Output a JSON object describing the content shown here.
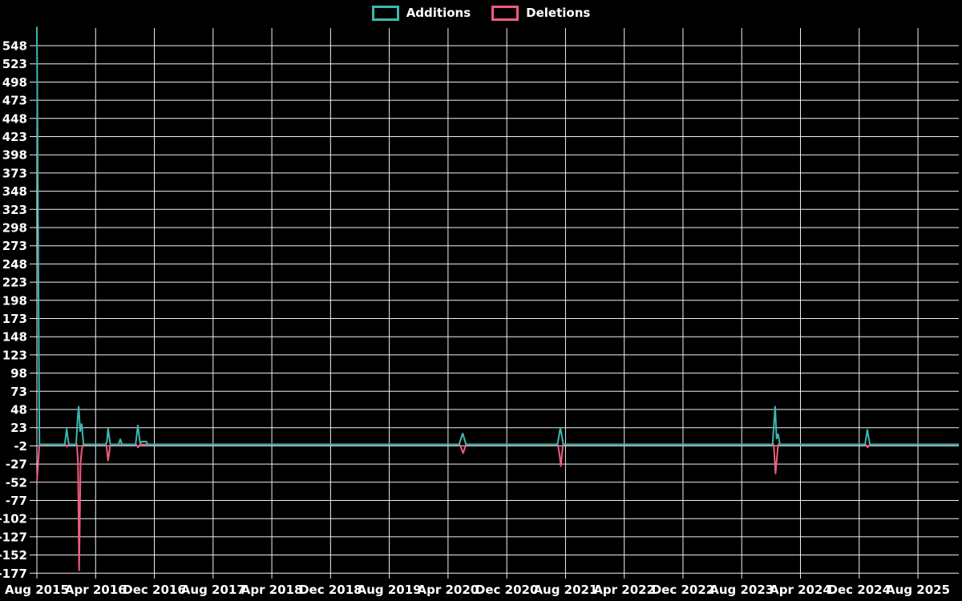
{
  "colors": {
    "background": "#000000",
    "grid": "#f2f2f2",
    "text": "#ffffff",
    "additions": "#3db8af",
    "deletions": "#f25c7f"
  },
  "legend": {
    "items": [
      {
        "label": "Additions",
        "color": "#3db8af"
      },
      {
        "label": "Deletions",
        "color": "#f25c7f"
      }
    ]
  },
  "chart_data": {
    "type": "line",
    "title": "",
    "legend_position": "top-center",
    "grid": true,
    "x_axis": {
      "tick_labels": [
        "Aug 2015",
        "Apr 2016",
        "Dec 2016",
        "Aug 2017",
        "Apr 2018",
        "Dec 2018",
        "Aug 2019",
        "Apr 2020",
        "Dec 2020",
        "Aug 2021",
        "Apr 2022",
        "Dec 2022",
        "Aug 2023",
        "Apr 2024",
        "Dec 2024",
        "Aug 2025"
      ],
      "months_between_ticks": 8
    },
    "y_axis": {
      "tick_labels": [
        "548",
        "523",
        "498",
        "473",
        "448",
        "423",
        "398",
        "373",
        "348",
        "323",
        "298",
        "273",
        "248",
        "223",
        "198",
        "173",
        "148",
        "123",
        "98",
        "73",
        "48",
        "23",
        "-2",
        "-27",
        "-52",
        "-77",
        "-102",
        "-127",
        "-152",
        "-177"
      ],
      "max_tick": 548,
      "min_tick": -177,
      "tick_step": 25
    },
    "series": [
      {
        "name": "Additions",
        "color": "#3db8af",
        "points_months_vs_value": [
          [
            0,
            573
          ],
          [
            0.35,
            0
          ],
          [
            3.8,
            0
          ],
          [
            4.05,
            21
          ],
          [
            4.35,
            0
          ],
          [
            5.35,
            0
          ],
          [
            5.55,
            35
          ],
          [
            5.7,
            52
          ],
          [
            5.9,
            18
          ],
          [
            6.1,
            28
          ],
          [
            6.35,
            0
          ],
          [
            9.35,
            0
          ],
          [
            9.55,
            4
          ],
          [
            9.7,
            22
          ],
          [
            10.0,
            0
          ],
          [
            11.1,
            0
          ],
          [
            11.35,
            7
          ],
          [
            11.6,
            0
          ],
          [
            13.45,
            0
          ],
          [
            13.75,
            26
          ],
          [
            14.05,
            2
          ],
          [
            14.3,
            4
          ],
          [
            14.9,
            4
          ],
          [
            15.1,
            0
          ],
          [
            57.5,
            0
          ],
          [
            58.0,
            15
          ],
          [
            58.45,
            0
          ],
          [
            70.9,
            0
          ],
          [
            71.3,
            23
          ],
          [
            71.7,
            0
          ],
          [
            100.2,
            0
          ],
          [
            100.55,
            52
          ],
          [
            100.75,
            8
          ],
          [
            100.95,
            14
          ],
          [
            101.2,
            0
          ],
          [
            112.8,
            0
          ],
          [
            113.1,
            20
          ],
          [
            113.45,
            0
          ],
          [
            125.5,
            0
          ]
        ]
      },
      {
        "name": "Deletions",
        "color": "#f25c7f",
        "points_months_vs_value": [
          [
            0,
            -51
          ],
          [
            0.35,
            0
          ],
          [
            3.9,
            0
          ],
          [
            4.1,
            -3
          ],
          [
            4.35,
            0
          ],
          [
            5.45,
            0
          ],
          [
            5.6,
            -25
          ],
          [
            5.75,
            -173
          ],
          [
            5.95,
            -25
          ],
          [
            6.1,
            -8
          ],
          [
            6.3,
            0
          ],
          [
            9.45,
            0
          ],
          [
            9.7,
            -22
          ],
          [
            10.0,
            0
          ],
          [
            13.5,
            0
          ],
          [
            13.8,
            -4
          ],
          [
            14.05,
            0
          ],
          [
            57.6,
            0
          ],
          [
            58.05,
            -12
          ],
          [
            58.45,
            0
          ],
          [
            70.95,
            0
          ],
          [
            71.2,
            -15
          ],
          [
            71.35,
            -30
          ],
          [
            71.65,
            0
          ],
          [
            100.35,
            0
          ],
          [
            100.6,
            -40
          ],
          [
            100.95,
            0
          ],
          [
            112.85,
            0
          ],
          [
            113.15,
            -4
          ],
          [
            113.45,
            0
          ],
          [
            125.5,
            0
          ]
        ]
      }
    ],
    "notable_events": [
      {
        "approx_date": "Aug 2015",
        "additions": 573,
        "deletions": -51
      },
      {
        "approx_date": "Dec 2015",
        "additions": 21,
        "deletions": -3
      },
      {
        "approx_date": "Feb 2016",
        "additions": 52,
        "deletions": -173
      },
      {
        "approx_date": "Mar 2016",
        "additions": 28,
        "deletions": -8
      },
      {
        "approx_date": "Jun 2016",
        "additions": 22,
        "deletions": -22
      },
      {
        "approx_date": "Jul 2016",
        "additions": 7,
        "deletions": 0
      },
      {
        "approx_date": "Sep 2016",
        "additions": 26,
        "deletions": -4
      },
      {
        "approx_date": "Oct 2016",
        "additions": 4,
        "deletions": 0
      },
      {
        "approx_date": "May 2020",
        "additions": 15,
        "deletions": -12
      },
      {
        "approx_date": "Jul 2021",
        "additions": 23,
        "deletions": -30
      },
      {
        "approx_date": "Dec 2023",
        "additions": 52,
        "deletions": -40
      },
      {
        "approx_date": "Jan 2025",
        "additions": 20,
        "deletions": -4
      }
    ]
  }
}
